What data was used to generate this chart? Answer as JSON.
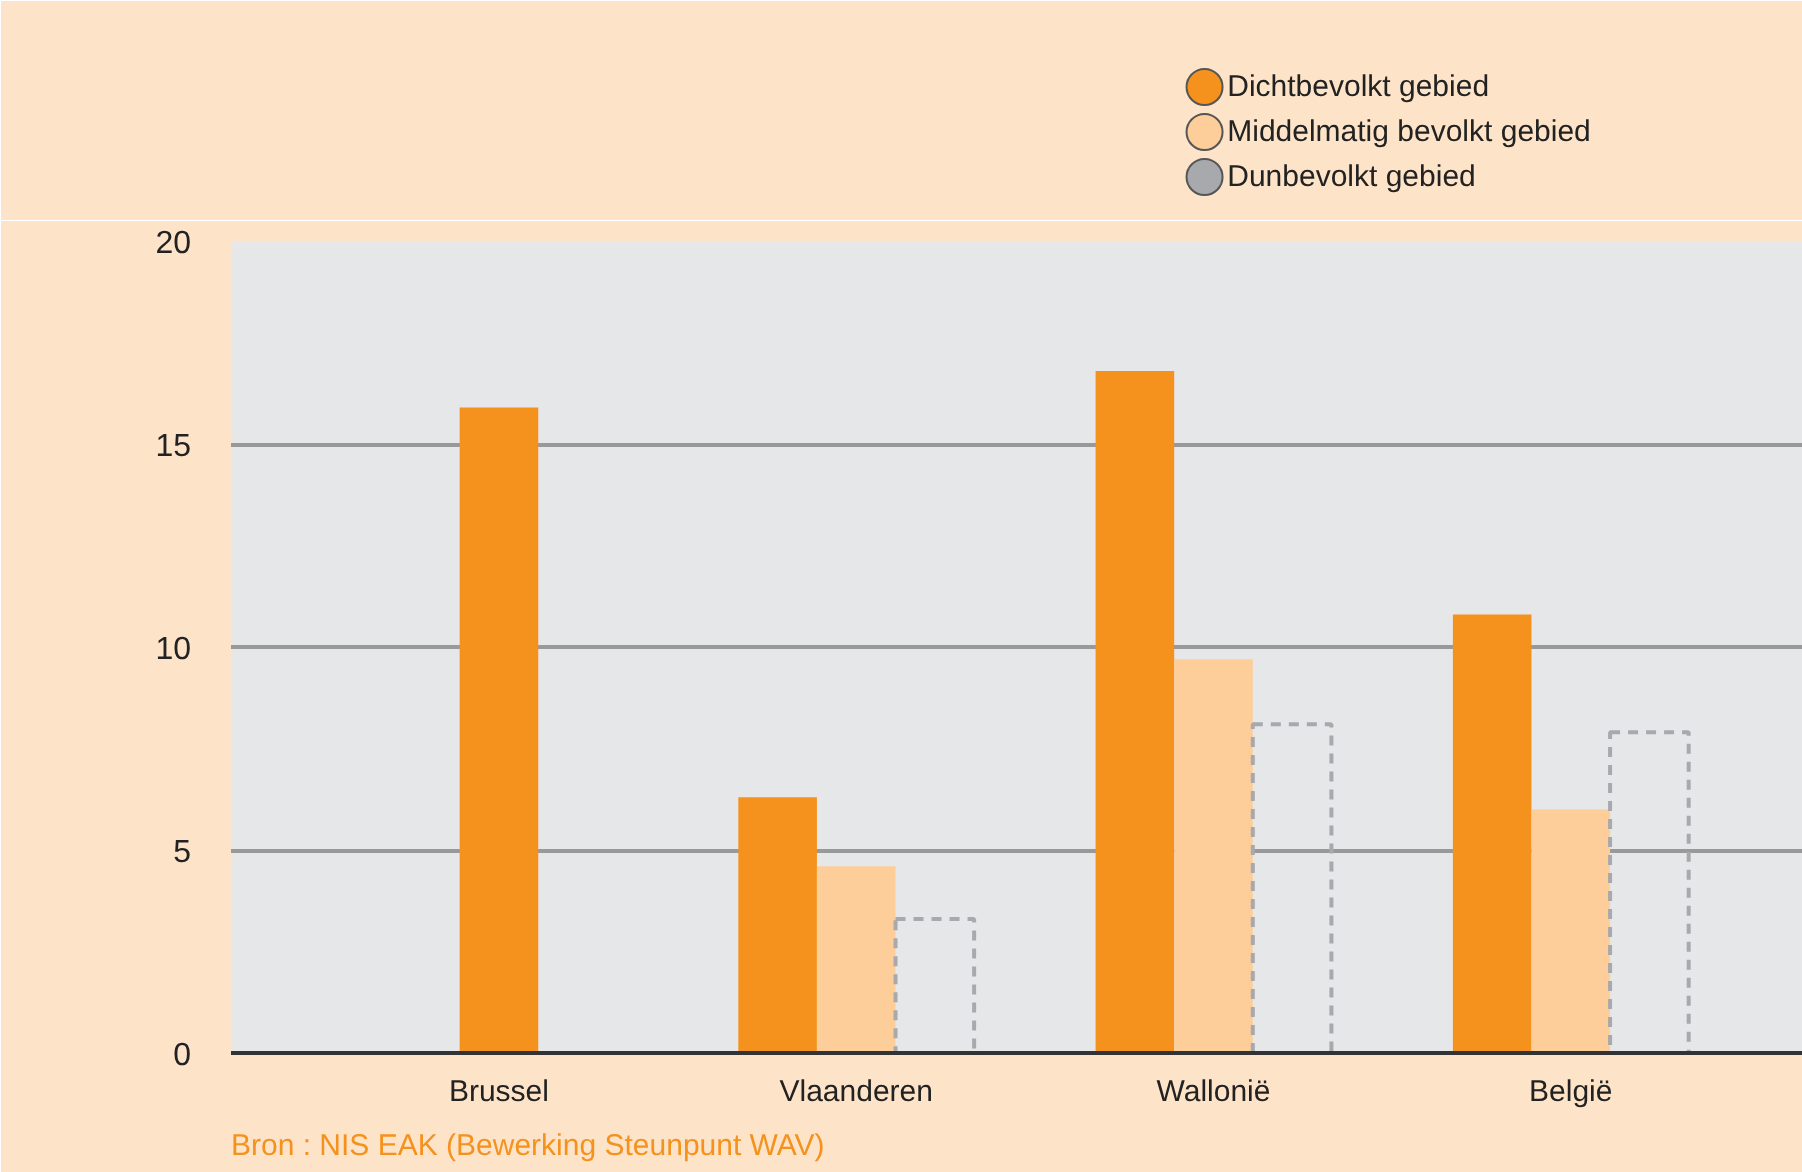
{
  "chart_data": {
    "type": "bar",
    "categories": [
      "Brussel",
      "Vlaanderen",
      "Wallonië",
      "België"
    ],
    "series": [
      {
        "name": "Dichtbevolkt gebied",
        "color": "#f5921e",
        "values": [
          15.9,
          6.3,
          16.8,
          10.8
        ]
      },
      {
        "name": "Middelmatig bevolkt gebied",
        "color": "#fdcd9a",
        "values": [
          null,
          4.6,
          9.7,
          6.0
        ]
      },
      {
        "name": "Dunbevolkt gebied",
        "color": "#a7a9ac",
        "line_style": "dashed",
        "values": [
          null,
          3.3,
          8.1,
          7.9
        ]
      }
    ],
    "ylim": [
      0,
      20
    ],
    "yticks": [
      0,
      5,
      10,
      15,
      20
    ],
    "grid": "y",
    "legend": "top right",
    "annotations": [
      "Bron : NIS EAK  (Bewerking Steunpunt WAV)"
    ]
  }
}
